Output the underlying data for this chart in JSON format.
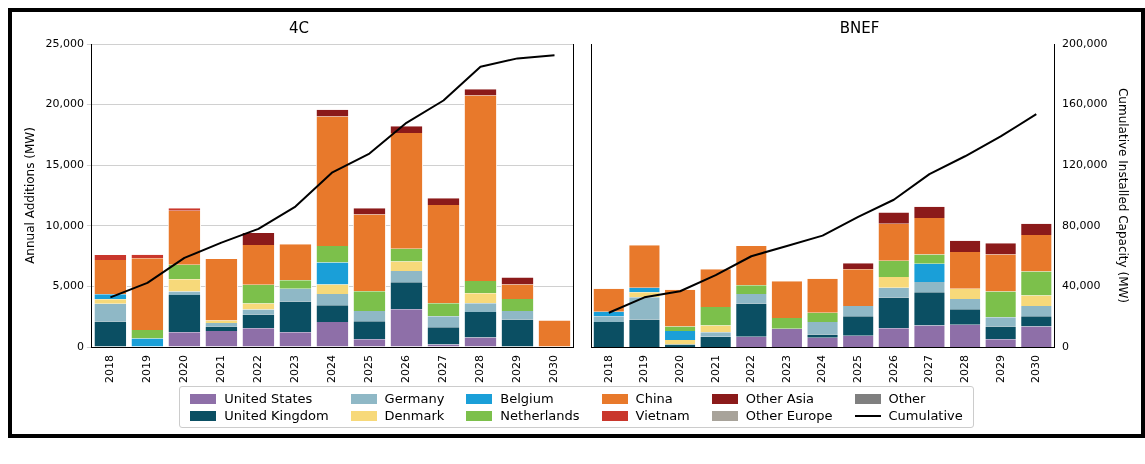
{
  "chart_data": [
    {
      "type": "bar",
      "title": "4C",
      "ylabel": "Annual Additions (MW)",
      "stacked": true,
      "grid": "y",
      "legend": "bottom",
      "tick_labels": [
        "x",
        "y"
      ],
      "categories": [
        "2018",
        "2019",
        "2020",
        "2021",
        "2022",
        "2023",
        "2024",
        "2025",
        "2026",
        "2027",
        "2028",
        "2029",
        "2030"
      ],
      "ylim": [
        0,
        25000
      ],
      "yticks": [
        {
          "value": 0,
          "label": "0"
        },
        {
          "value": 5000,
          "label": "5,000"
        },
        {
          "value": 10000,
          "label": "10,000"
        },
        {
          "value": 15000,
          "label": "15,000"
        },
        {
          "value": 20000,
          "label": "20,000"
        },
        {
          "value": 25000,
          "label": "25,000"
        }
      ],
      "y2lim": [
        0,
        200000
      ],
      "series": [
        {
          "name": "United States",
          "color": "#8e6fa8",
          "values": [
            0,
            0,
            1210,
            1330,
            1550,
            1210,
            2060,
            650,
            3110,
            200,
            790,
            0,
            0
          ]
        },
        {
          "name": "United Kingdom",
          "color": "#0b4f63",
          "values": [
            2100,
            0,
            3080,
            370,
            1130,
            2540,
            1380,
            1470,
            2230,
            1440,
            2090,
            2260,
            0
          ]
        },
        {
          "name": "Germany",
          "color": "#8fb8c6",
          "values": [
            1470,
            0,
            280,
            280,
            420,
            1050,
            930,
            850,
            930,
            900,
            730,
            710,
            0
          ]
        },
        {
          "name": "Denmark",
          "color": "#f7d97a",
          "values": [
            370,
            0,
            1020,
            200,
            480,
            0,
            790,
            0,
            790,
            0,
            820,
            0,
            0
          ]
        },
        {
          "name": "Belgium",
          "color": "#1a9fd8",
          "values": [
            420,
            700,
            0,
            0,
            0,
            0,
            1810,
            0,
            0,
            0,
            0,
            0,
            0
          ]
        },
        {
          "name": "Netherlands",
          "color": "#7cc04b",
          "values": [
            0,
            700,
            1190,
            0,
            1550,
            700,
            1360,
            1640,
            1050,
            1070,
            1020,
            990,
            0
          ]
        },
        {
          "name": "China",
          "color": "#e8792b",
          "values": [
            2820,
            5930,
            4460,
            5080,
            3280,
            2970,
            10680,
            6330,
            9550,
            8110,
            15310,
            1190,
            2180
          ]
        },
        {
          "name": "Vietnam",
          "color": "#c9372c",
          "values": [
            420,
            280,
            200,
            0,
            0,
            0,
            0,
            0,
            0,
            0,
            0,
            0,
            0
          ]
        },
        {
          "name": "Other Asia",
          "color": "#8b1a1a",
          "values": [
            0,
            0,
            0,
            0,
            990,
            0,
            560,
            510,
            560,
            560,
            510,
            590,
            0
          ]
        },
        {
          "name": "Other Europe",
          "color": "#a8a39a",
          "values": [
            0,
            0,
            0,
            0,
            0,
            0,
            0,
            0,
            0,
            0,
            0,
            0,
            0
          ]
        },
        {
          "name": "Other",
          "color": "#7f7f7f",
          "values": [
            0,
            0,
            0,
            0,
            0,
            0,
            0,
            0,
            0,
            0,
            0,
            0,
            0
          ]
        },
        {
          "name": "Cumulative",
          "type": "line",
          "axis": "y2",
          "marker": "none",
          "color": "#000000",
          "values": [
            32800,
            42300,
            58800,
            68900,
            78000,
            92700,
            115300,
            127700,
            148000,
            162700,
            185000,
            190500,
            192500
          ]
        }
      ]
    },
    {
      "type": "bar",
      "title": "BNEF",
      "y2label": "Cumulative Installed Capacity (MW)",
      "stacked": true,
      "grid": "y",
      "tick_labels": [
        "x",
        "y2"
      ],
      "categories": [
        "2018",
        "2019",
        "2020",
        "2021",
        "2022",
        "2023",
        "2024",
        "2025",
        "2026",
        "2027",
        "2028",
        "2029",
        "2030"
      ],
      "ylim": [
        0,
        25000
      ],
      "y2lim": [
        0,
        200000
      ],
      "y2ticks": [
        {
          "value": 0,
          "label": "0"
        },
        {
          "value": 40000,
          "label": "40,000"
        },
        {
          "value": 80000,
          "label": "80,000"
        },
        {
          "value": 120000,
          "label": "120,000"
        },
        {
          "value": 160000,
          "label": "160,000"
        },
        {
          "value": 200000,
          "label": "200,000"
        }
      ],
      "series": [
        {
          "color": "#8e6fa8",
          "values": [
            0,
            0,
            0,
            0,
            850,
            1500,
            760,
            930,
            1550,
            1780,
            1840,
            650,
            1690
          ]
        },
        {
          "color": "#0b4f63",
          "values": [
            2060,
            2260,
            200,
            850,
            2740,
            0,
            280,
            1610,
            2540,
            2740,
            1270,
            1050,
            850
          ]
        },
        {
          "color": "#8fb8c6",
          "values": [
            480,
            1840,
            0,
            370,
            790,
            0,
            1020,
            850,
            790,
            850,
            850,
            760,
            850
          ]
        },
        {
          "color": "#f7d97a",
          "values": [
            0,
            420,
            370,
            560,
            0,
            0,
            0,
            0,
            900,
            0,
            850,
            0,
            850
          ]
        },
        {
          "color": "#1a9fd8",
          "values": [
            370,
            370,
            760,
            0,
            0,
            0,
            0,
            0,
            0,
            1500,
            0,
            0,
            0
          ]
        },
        {
          "color": "#7cc04b",
          "values": [
            0,
            0,
            370,
            1530,
            710,
            900,
            760,
            0,
            1330,
            760,
            0,
            2120,
            1980
          ]
        },
        {
          "color": "#e8792b",
          "values": [
            1890,
            3500,
            3020,
            3110,
            3250,
            3020,
            2820,
            3020,
            3050,
            3020,
            3020,
            3050,
            3020
          ]
        },
        {
          "color": "#8b1a1a",
          "values": [
            0,
            0,
            0,
            0,
            0,
            0,
            0,
            510,
            930,
            930,
            930,
            930,
            930
          ]
        },
        {
          "type": "line",
          "axis": "y2",
          "marker": "none",
          "color": "#000000",
          "values": [
            22600,
            32800,
            36800,
            47500,
            59900,
            66700,
            73500,
            85900,
            97200,
            114100,
            125900,
            139000,
            153700
          ]
        }
      ]
    }
  ]
}
